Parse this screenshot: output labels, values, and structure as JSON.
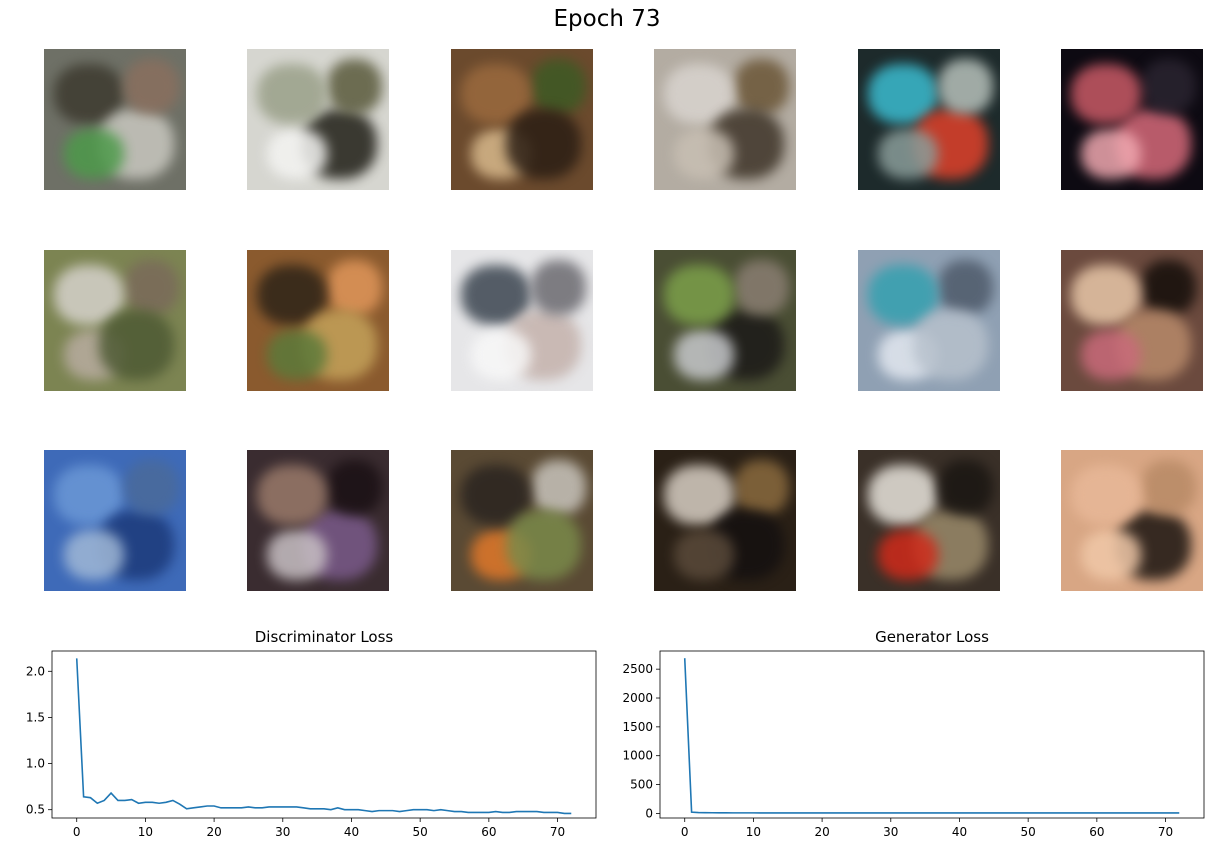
{
  "figure_title": "Epoch 73",
  "samples": [
    {
      "name": "sample-r1c1",
      "bg": "#6e7066",
      "blobs": [
        "#3d3a2f",
        "#c9c8c0",
        "#4d9a4a",
        "#8a6f5e"
      ]
    },
    {
      "name": "sample-r1c2",
      "bg": "#d6d6d0",
      "blobs": [
        "#1f1e16",
        "#f4f4f2",
        "#5a5a3c",
        "#9aa089"
      ]
    },
    {
      "name": "sample-r1c3",
      "bg": "#6b4a2d",
      "blobs": [
        "#d8b98c",
        "#3d5a24",
        "#9b6a3e",
        "#2b1e14"
      ]
    },
    {
      "name": "sample-r1c4",
      "bg": "#b3aca2",
      "blobs": [
        "#6b5637",
        "#d9d4cf",
        "#3e3428",
        "#c8bfb3"
      ]
    },
    {
      "name": "sample-r1c5",
      "bg": "#1d2a2b",
      "blobs": [
        "#3bbcd0",
        "#e0412a",
        "#8a9d9a",
        "#b7c1bb"
      ]
    },
    {
      "name": "sample-r1c6",
      "bg": "#0d0a12",
      "blobs": [
        "#d66a7a",
        "#f0a8b0",
        "#2a2430",
        "#c95a66"
      ]
    },
    {
      "name": "sample-r2c1",
      "bg": "#7c8452",
      "blobs": [
        "#b8aca0",
        "#7a6a5a",
        "#d6d2cc",
        "#4e5a34"
      ]
    },
    {
      "name": "sample-r2c2",
      "bg": "#8a5a2e",
      "blobs": [
        "#e0965a",
        "#2e2418",
        "#c4a25a",
        "#5c7a3a"
      ]
    },
    {
      "name": "sample-r2c3",
      "bg": "#e6e6e8",
      "blobs": [
        "#3b4550",
        "#c4b2ac",
        "#f8f8f8",
        "#6b6a70"
      ]
    },
    {
      "name": "sample-r2c4",
      "bg": "#4a4e34",
      "blobs": [
        "#1c1a18",
        "#c7c9cc",
        "#8a7e72",
        "#7ca04a"
      ]
    },
    {
      "name": "sample-r2c5",
      "bg": "#8fa0b3",
      "blobs": [
        "#e3e8f0",
        "#4e5a6a",
        "#34a0b0",
        "#b7c1cc"
      ]
    },
    {
      "name": "sample-r2c6",
      "bg": "#6b4a3e",
      "blobs": [
        "#140e0a",
        "#e8c7a8",
        "#b88a6a",
        "#c96a7a"
      ]
    },
    {
      "name": "sample-r3c1",
      "bg": "#3e6ab8",
      "blobs": [
        "#6b98d6",
        "#1c3a7a",
        "#a0b8d6",
        "#4a6a9a"
      ]
    },
    {
      "name": "sample-r3c2",
      "bg": "#3a2c30",
      "blobs": [
        "#7a5a8a",
        "#c8c0c4",
        "#1a1014",
        "#9a7a6a"
      ]
    },
    {
      "name": "sample-r3c3",
      "bg": "#5a4a34",
      "blobs": [
        "#e0782a",
        "#c8c4bc",
        "#2a2420",
        "#7a8a4a"
      ]
    },
    {
      "name": "sample-r3c4",
      "bg": "#2a2016",
      "blobs": [
        "#8a6a3e",
        "#d8cfc4",
        "#141010",
        "#5a4a3a"
      ]
    },
    {
      "name": "sample-r3c5",
      "bg": "#3a3028",
      "blobs": [
        "#e8e4dc",
        "#9a8a6a",
        "#d02a1a",
        "#1a1612"
      ]
    },
    {
      "name": "sample-r3c6",
      "bg": "#d8a684",
      "blobs": [
        "#1a1410",
        "#f0c8a8",
        "#b88a66",
        "#e8b898"
      ]
    }
  ],
  "chart_data": [
    {
      "type": "line",
      "title": "Discriminator Loss",
      "xlabel": "",
      "ylabel": "",
      "xlim": [
        -3.6,
        75.6
      ],
      "ylim": [
        0.41,
        2.22
      ],
      "xticks": [
        0,
        10,
        20,
        30,
        40,
        50,
        60,
        70
      ],
      "yticks": [
        0.5,
        1.0,
        1.5,
        2.0
      ],
      "ytick_labels": [
        "0.5",
        "1.0",
        "1.5",
        "2.0"
      ],
      "grid": false,
      "color": "#1f77b4",
      "series": [
        {
          "x": [
            0,
            1,
            2,
            3,
            4,
            5,
            6,
            7,
            8,
            9,
            10,
            11,
            12,
            13,
            14,
            15,
            16,
            17,
            18,
            19,
            20,
            21,
            22,
            23,
            24,
            25,
            26,
            27,
            28,
            29,
            30,
            31,
            32,
            33,
            34,
            35,
            36,
            37,
            38,
            39,
            40,
            41,
            42,
            43,
            44,
            45,
            46,
            47,
            48,
            49,
            50,
            51,
            52,
            53,
            54,
            55,
            56,
            57,
            58,
            59,
            60,
            61,
            62,
            63,
            64,
            65,
            66,
            67,
            68,
            69,
            70,
            71,
            72
          ],
          "values": [
            2.14,
            0.64,
            0.63,
            0.57,
            0.6,
            0.68,
            0.6,
            0.6,
            0.61,
            0.57,
            0.58,
            0.58,
            0.57,
            0.58,
            0.6,
            0.56,
            0.51,
            0.52,
            0.53,
            0.54,
            0.54,
            0.52,
            0.52,
            0.52,
            0.52,
            0.53,
            0.52,
            0.52,
            0.53,
            0.53,
            0.53,
            0.53,
            0.53,
            0.52,
            0.51,
            0.51,
            0.51,
            0.5,
            0.52,
            0.5,
            0.5,
            0.5,
            0.49,
            0.48,
            0.49,
            0.49,
            0.49,
            0.48,
            0.49,
            0.5,
            0.5,
            0.5,
            0.49,
            0.5,
            0.49,
            0.48,
            0.48,
            0.47,
            0.47,
            0.47,
            0.47,
            0.48,
            0.47,
            0.47,
            0.48,
            0.48,
            0.48,
            0.48,
            0.47,
            0.47,
            0.47,
            0.46,
            0.46
          ]
        }
      ]
    },
    {
      "type": "line",
      "title": "Generator Loss",
      "xlabel": "",
      "ylabel": "",
      "xlim": [
        -3.6,
        75.6
      ],
      "ylim": [
        -80,
        2815
      ],
      "xticks": [
        0,
        10,
        20,
        30,
        40,
        50,
        60,
        70
      ],
      "yticks": [
        0,
        500,
        1000,
        1500,
        2000,
        2500
      ],
      "ytick_labels": [
        "0",
        "500",
        "1000",
        "1500",
        "2000",
        "2500"
      ],
      "grid": false,
      "color": "#1f77b4",
      "series": [
        {
          "x": [
            0,
            1,
            2,
            3,
            4,
            5,
            6,
            7,
            8,
            9,
            10,
            11,
            12,
            13,
            14,
            15,
            16,
            17,
            18,
            19,
            20,
            21,
            22,
            23,
            24,
            25,
            26,
            27,
            28,
            29,
            30,
            31,
            32,
            33,
            34,
            35,
            36,
            37,
            38,
            39,
            40,
            41,
            42,
            43,
            44,
            45,
            46,
            47,
            48,
            49,
            50,
            51,
            52,
            53,
            54,
            55,
            56,
            57,
            58,
            59,
            60,
            61,
            62,
            63,
            64,
            65,
            66,
            67,
            68,
            69,
            70,
            71,
            72
          ],
          "values": [
            2690,
            22,
            15,
            12,
            11,
            10,
            10,
            9,
            9,
            9,
            9,
            8,
            8,
            8,
            8,
            8,
            8,
            8,
            8,
            8,
            7,
            7,
            7,
            7,
            7,
            7,
            7,
            7,
            7,
            7,
            7,
            7,
            7,
            7,
            7,
            7,
            7,
            7,
            7,
            7,
            7,
            7,
            7,
            7,
            7,
            7,
            7,
            7,
            7,
            7,
            7,
            7,
            7,
            7,
            7,
            7,
            7,
            7,
            7,
            7,
            7,
            7,
            7,
            7,
            7,
            7,
            7,
            7,
            7,
            7,
            7,
            7,
            7
          ]
        }
      ]
    }
  ]
}
